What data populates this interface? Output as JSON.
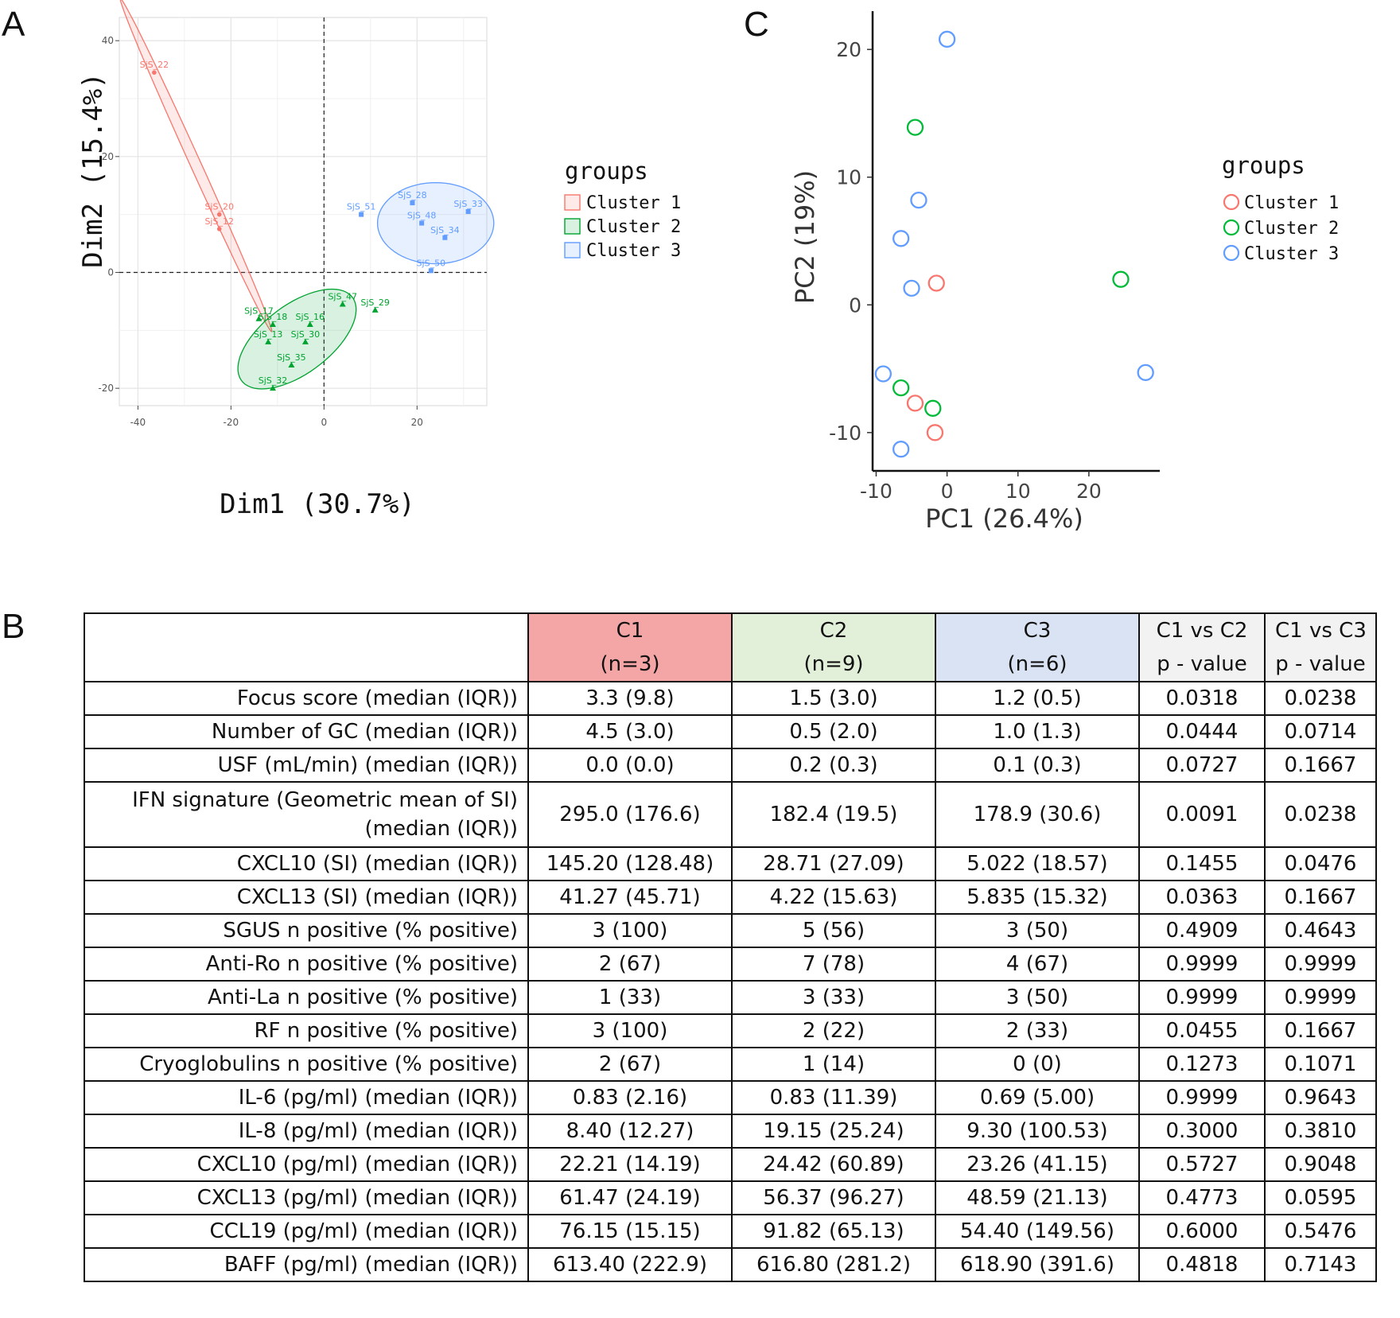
{
  "panels": {
    "a": "A",
    "b": "B",
    "c": "C"
  },
  "chart_data": [
    {
      "type": "scatter",
      "xlabel": "Dim1 (30.7%)",
      "ylabel": "Dim2 (15.4%)",
      "xlim": [
        -44,
        35
      ],
      "ylim": [
        -23,
        44
      ],
      "xticks": [
        -40,
        -20,
        0,
        20
      ],
      "yticks": [
        -20,
        0,
        20,
        40
      ],
      "grid": true,
      "reference_lines": [
        0,
        0
      ],
      "legend_title": "groups",
      "legend_position": "right",
      "series": [
        {
          "name": "Cluster 1",
          "color": "#f8766d",
          "marker": "circle",
          "points": [
            {
              "x": -36.5,
              "y": 34.5,
              "label": "SjS_22"
            },
            {
              "x": -22.5,
              "y": 10.0,
              "label": "SjS_20"
            },
            {
              "x": -22.5,
              "y": 7.5,
              "label": "SjS_12"
            }
          ]
        },
        {
          "name": "Cluster 2",
          "color": "#00a330",
          "marker": "triangle",
          "points": [
            {
              "x": -14,
              "y": -8,
              "label": "SjS_17"
            },
            {
              "x": -11,
              "y": -9,
              "label": "SjS_18"
            },
            {
              "x": -3,
              "y": -9,
              "label": "SjS_16"
            },
            {
              "x": -12,
              "y": -12,
              "label": "SjS_13"
            },
            {
              "x": -4,
              "y": -12,
              "label": "SjS_30"
            },
            {
              "x": 4,
              "y": -5.5,
              "label": "SjS_47"
            },
            {
              "x": 11,
              "y": -6.5,
              "label": "SjS_29"
            },
            {
              "x": -7,
              "y": -16,
              "label": "SjS_35"
            },
            {
              "x": -11,
              "y": -20,
              "label": "SjS_32"
            }
          ]
        },
        {
          "name": "Cluster 3",
          "color": "#619cff",
          "marker": "square",
          "points": [
            {
              "x": 19,
              "y": 12,
              "label": "SjS_28"
            },
            {
              "x": 31,
              "y": 10.5,
              "label": "SjS_33"
            },
            {
              "x": 8,
              "y": 10,
              "label": "SjS_51"
            },
            {
              "x": 21,
              "y": 8.5,
              "label": "SjS_48"
            },
            {
              "x": 26,
              "y": 6,
              "label": "SjS_34"
            },
            {
              "x": 23,
              "y": 0.3,
              "label": "SjS_50"
            }
          ]
        }
      ]
    },
    {
      "type": "scatter",
      "xlabel": "PC1 (26.4%)",
      "ylabel": "PC2 (19%)",
      "xlim": [
        -10.5,
        30
      ],
      "ylim": [
        -13,
        23
      ],
      "xticks": [
        -10,
        0,
        10,
        20
      ],
      "yticks": [
        -10,
        0,
        10,
        20
      ],
      "grid": false,
      "legend_title": "groups",
      "legend_position": "right",
      "series": [
        {
          "name": "Cluster 1",
          "color": "#f8766d",
          "points": [
            {
              "x": -1.5,
              "y": 1.7
            },
            {
              "x": -4.5,
              "y": -7.7
            },
            {
              "x": -1.7,
              "y": -10
            }
          ]
        },
        {
          "name": "Cluster 2",
          "color": "#00ba38",
          "points": [
            {
              "x": -4.5,
              "y": 13.9
            },
            {
              "x": 24.5,
              "y": 2.0
            },
            {
              "x": -6.5,
              "y": -6.5
            },
            {
              "x": -2.0,
              "y": -8.1
            }
          ]
        },
        {
          "name": "Cluster 3",
          "color": "#619cff",
          "points": [
            {
              "x": 0,
              "y": 20.8
            },
            {
              "x": -4,
              "y": 8.2
            },
            {
              "x": -6.5,
              "y": 5.2
            },
            {
              "x": -5.0,
              "y": 1.3
            },
            {
              "x": -9.0,
              "y": -5.4
            },
            {
              "x": 28.0,
              "y": -5.3
            },
            {
              "x": -6.5,
              "y": -11.3
            }
          ]
        }
      ]
    },
    {
      "type": "table",
      "columns": [
        {
          "line1": "",
          "line2": "",
          "color": "#ffffff"
        },
        {
          "line1": "C1",
          "line2": "(n=3)",
          "color": "#f4a6a6"
        },
        {
          "line1": "C2",
          "line2": "(n=9)",
          "color": "#e2f0d9"
        },
        {
          "line1": "C3",
          "line2": "(n=6)",
          "color": "#dae3f3"
        },
        {
          "line1": "C1 vs C2",
          "line2": "p - value",
          "color": "#f2f2f2"
        },
        {
          "line1": "C1 vs C3",
          "line2": "p - value",
          "color": "#f2f2f2"
        }
      ],
      "rows": [
        {
          "label": [
            "Focus score (median (IQR))"
          ],
          "c1": "3.3 (9.8)",
          "c2": "1.5 (3.0)",
          "c3": "1.2 (0.5)",
          "p12": "0.0318",
          "p13": "0.0238"
        },
        {
          "label": [
            "Number of GC (median (IQR))"
          ],
          "c1": "4.5 (3.0)",
          "c2": "0.5 (2.0)",
          "c3": "1.0 (1.3)",
          "p12": "0.0444",
          "p13": "0.0714"
        },
        {
          "label": [
            "USF (mL/min) (median (IQR))"
          ],
          "c1": "0.0 (0.0)",
          "c2": "0.2 (0.3)",
          "c3": "0.1 (0.3)",
          "p12": "0.0727",
          "p13": "0.1667"
        },
        {
          "label": [
            "IFN signature (Geometric mean of SI)",
            "(median (IQR))"
          ],
          "c1": "295.0 (176.6)",
          "c2": "182.4 (19.5)",
          "c3": "178.9 (30.6)",
          "p12": "0.0091",
          "p13": "0.0238"
        },
        {
          "label": [
            "CXCL10 (SI) (median (IQR))"
          ],
          "c1": "145.20 (128.48)",
          "c2": "28.71 (27.09)",
          "c3": "5.022 (18.57)",
          "p12": "0.1455",
          "p13": "0.0476"
        },
        {
          "label": [
            "CXCL13 (SI) (median (IQR))"
          ],
          "c1": "41.27 (45.71)",
          "c2": "4.22 (15.63)",
          "c3": "5.835 (15.32)",
          "p12": "0.0363",
          "p13": "0.1667"
        },
        {
          "label": [
            "SGUS n positive (% positive)"
          ],
          "c1": "3 (100)",
          "c2": "5 (56)",
          "c3": "3 (50)",
          "p12": "0.4909",
          "p13": "0.4643"
        },
        {
          "label": [
            "Anti-Ro n positive (% positive)"
          ],
          "c1": "2 (67)",
          "c2": "7 (78)",
          "c3": "4 (67)",
          "p12": "0.9999",
          "p13": "0.9999"
        },
        {
          "label": [
            "Anti-La n positive (% positive)"
          ],
          "c1": "1 (33)",
          "c2": "3 (33)",
          "c3": "3 (50)",
          "p12": "0.9999",
          "p13": "0.9999"
        },
        {
          "label": [
            "RF n positive (% positive)"
          ],
          "c1": "3 (100)",
          "c2": "2 (22)",
          "c3": "2 (33)",
          "p12": "0.0455",
          "p13": "0.1667"
        },
        {
          "label": [
            "Cryoglobulins n positive (% positive)"
          ],
          "c1": "2 (67)",
          "c2": "1 (14)",
          "c3": "0 (0)",
          "p12": "0.1273",
          "p13": "0.1071"
        },
        {
          "label": [
            "IL-6 (pg/ml) (median (IQR))"
          ],
          "c1": "0.83 (2.16)",
          "c2": "0.83 (11.39)",
          "c3": "0.69 (5.00)",
          "p12": "0.9999",
          "p13": "0.9643"
        },
        {
          "label": [
            "IL-8 (pg/ml) (median (IQR))"
          ],
          "c1": "8.40 (12.27)",
          "c2": "19.15 (25.24)",
          "c3": "9.30 (100.53)",
          "p12": "0.3000",
          "p13": "0.3810"
        },
        {
          "label": [
            "CXCL10 (pg/ml) (median (IQR))"
          ],
          "c1": "22.21 (14.19)",
          "c2": "24.42 (60.89)",
          "c3": "23.26 (41.15)",
          "p12": "0.5727",
          "p13": "0.9048"
        },
        {
          "label": [
            "CXCL13 (pg/ml) (median (IQR))"
          ],
          "c1": "61.47 (24.19)",
          "c2": "56.37 (96.27)",
          "c3": "48.59 (21.13)",
          "p12": "0.4773",
          "p13": "0.0595"
        },
        {
          "label": [
            "CCL19 (pg/ml) (median (IQR))"
          ],
          "c1": "76.15 (15.15)",
          "c2": "91.82 (65.13)",
          "c3": "54.40 (149.56)",
          "p12": "0.6000",
          "p13": "0.5476"
        },
        {
          "label": [
            "BAFF (pg/ml) (median (IQR))"
          ],
          "c1": "613.40 (222.9)",
          "c2": "616.80 (281.2)",
          "c3": "618.90 (391.6)",
          "p12": "0.4818",
          "p13": "0.7143"
        }
      ]
    }
  ]
}
